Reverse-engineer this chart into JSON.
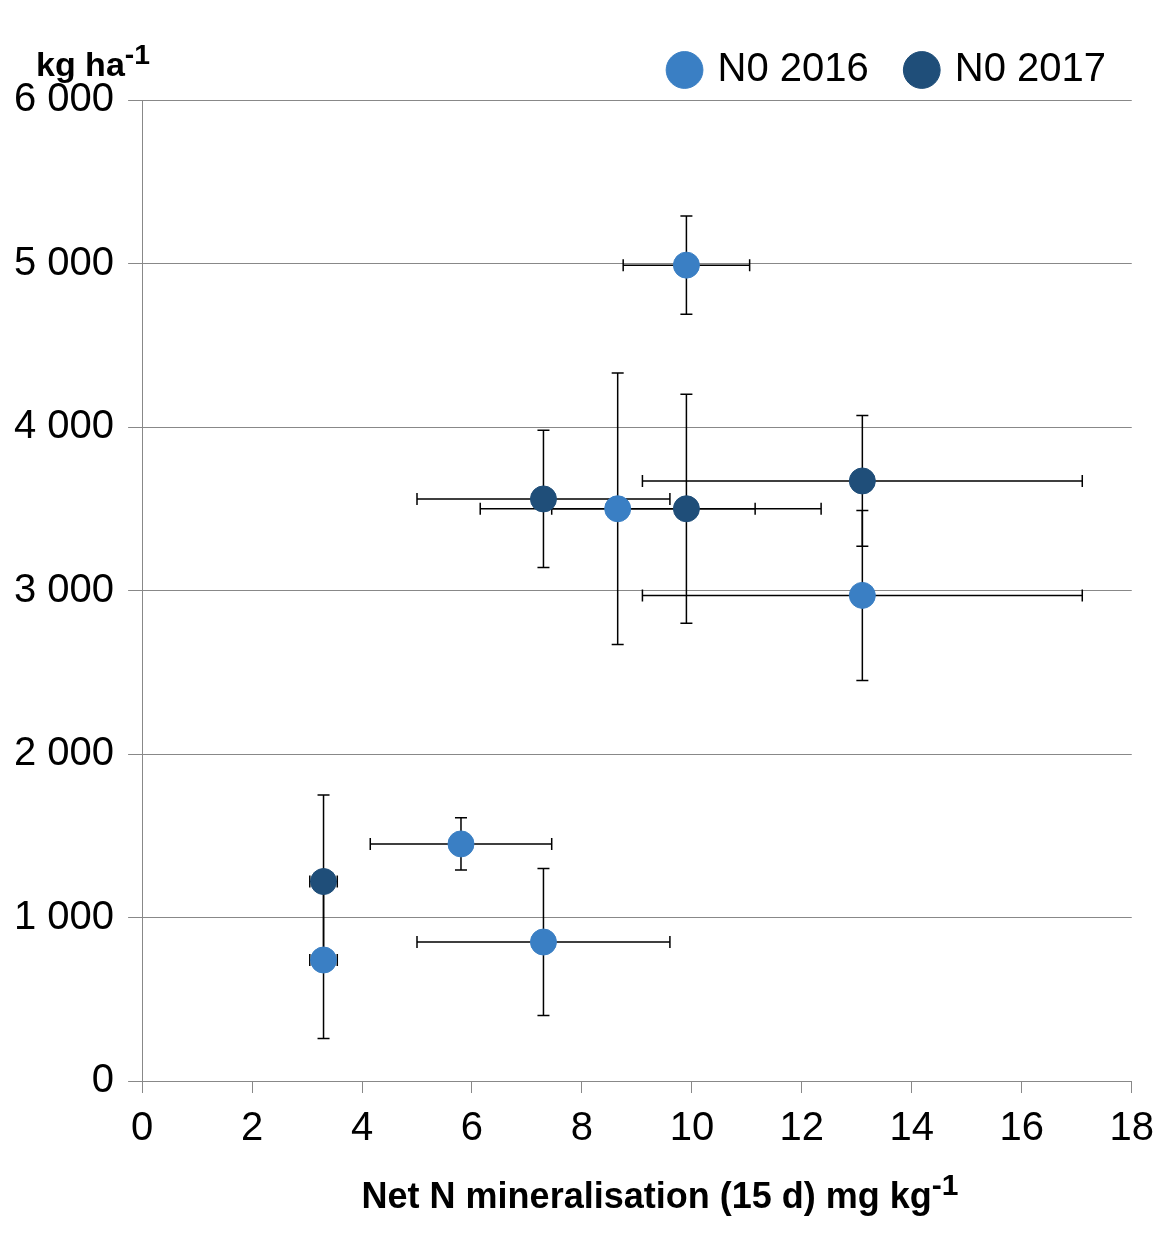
{
  "chart_data": {
    "type": "scatter",
    "xlabel": "Net N mineralisation (15 d) mg kg$^{-1}$",
    "ylabel": "kg ha$^{-1}$",
    "xlim": [
      0,
      18
    ],
    "xticks": [
      0,
      2,
      4,
      6,
      8,
      10,
      12,
      14,
      16,
      18
    ],
    "ylim": [
      0,
      6000
    ],
    "yticks": [
      {
        "value": 0,
        "label": "0"
      },
      {
        "value": 1000,
        "label": "1 000"
      },
      {
        "value": 2000,
        "label": "2 000"
      },
      {
        "value": 3000,
        "label": "3 000"
      },
      {
        "value": 4000,
        "label": "4 000"
      },
      {
        "value": 5000,
        "label": "5 000"
      },
      {
        "value": 6000,
        "label": "6 000"
      }
    ],
    "grid": "y",
    "legend": "top right",
    "marker": "circle",
    "series": [
      {
        "name": "N0 2016",
        "color": "#3a7fc4",
        "x": [
          9.9,
          8.65,
          13.1,
          5.8,
          7.3,
          3.3
        ],
        "values": [
          4990,
          3500,
          2970,
          1450,
          850,
          740
        ],
        "errors": [
          300,
          830,
          520,
          160,
          450,
          480
        ],
        "xerrors": [
          1.15,
          2.5,
          4,
          1.65,
          2.3,
          0.25
        ]
      },
      {
        "name": "N0 2017",
        "color": "#1f4e79",
        "x": [
          7.3,
          9.9,
          13.1,
          3.3
        ],
        "values": [
          3560,
          3500,
          3670,
          1220
        ],
        "errors": [
          420,
          700,
          400,
          530
        ],
        "xerrors": [
          2.3,
          2.45,
          4,
          0.25
        ]
      }
    ]
  }
}
